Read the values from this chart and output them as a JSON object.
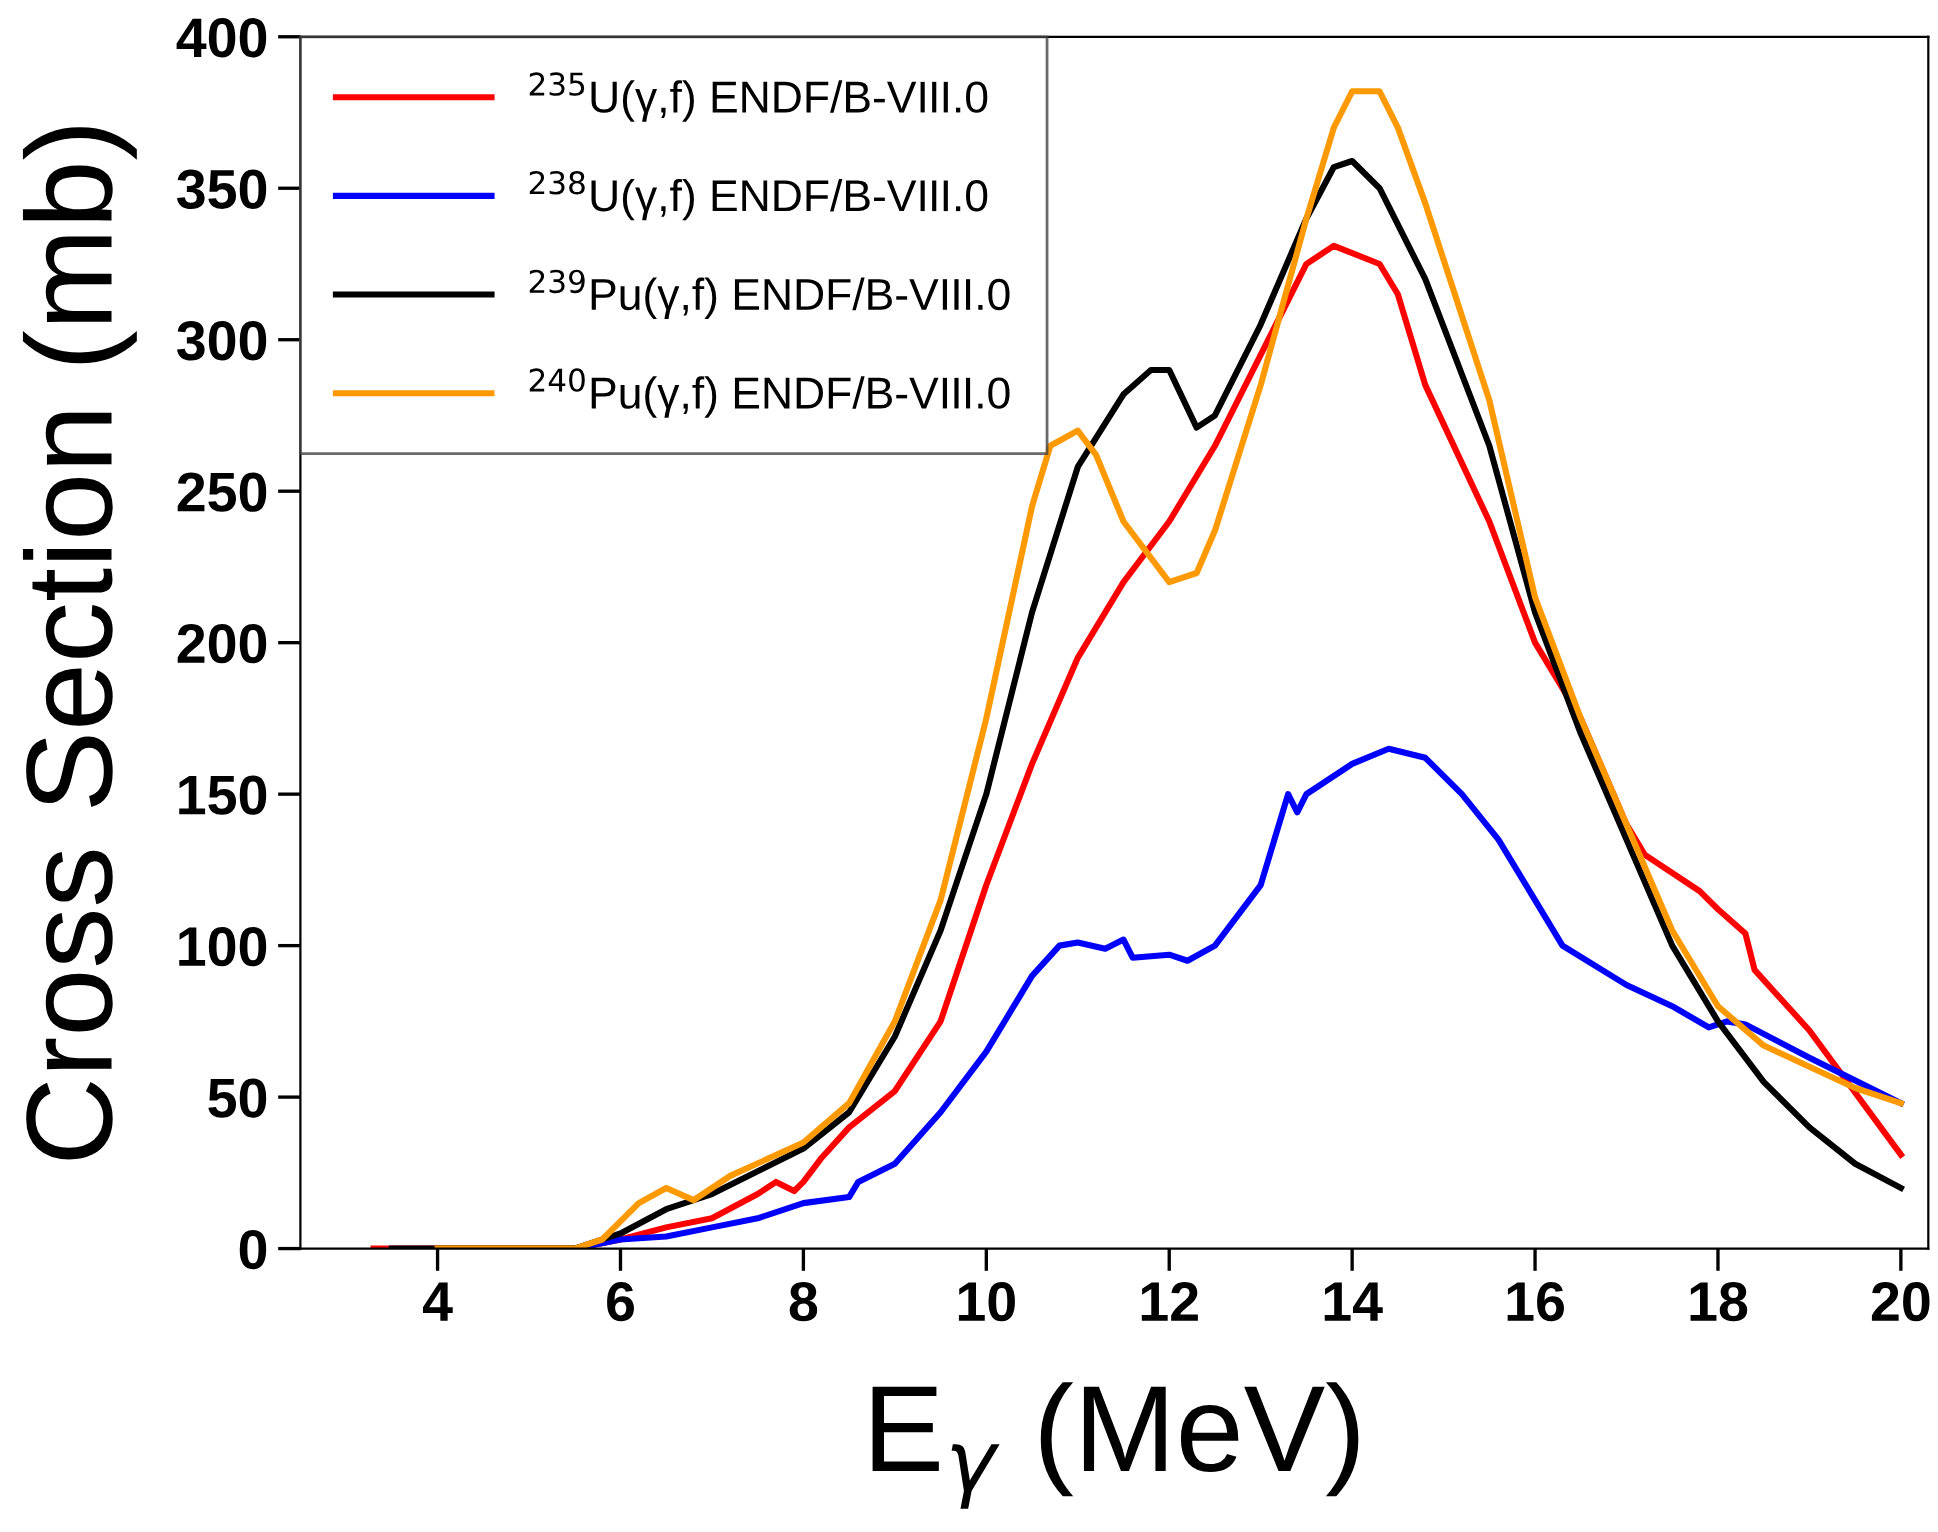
{
  "chart_data": {
    "type": "line",
    "xlabel": "E$_{γ}$ (MeV)",
    "ylabel": "Cross Section (mb)",
    "xlim": [
      2.5,
      20.3
    ],
    "ylim": [
      0,
      400
    ],
    "xticks": [
      4,
      6,
      8,
      10,
      12,
      14,
      16,
      18,
      20
    ],
    "yticks": [
      0,
      50,
      100,
      150,
      200,
      250,
      300,
      350,
      400
    ],
    "grid": false,
    "legend": "top left",
    "marker": "none",
    "line_style": "solid",
    "series": [
      {
        "name": "$^{235}$U(γ,f) ENDF/B-VIII.0",
        "color": "#ff0000",
        "x": [
          3.3,
          5.5,
          6,
          6.5,
          7,
          7.5,
          7.7,
          7.9,
          8,
          8.2,
          8.5,
          9,
          9.5,
          10,
          10.5,
          11,
          11.5,
          12,
          12.5,
          13,
          13.5,
          13.8,
          14.3,
          14.5,
          14.8,
          15.5,
          16,
          16.5,
          17,
          17.2,
          17.8,
          18,
          18.3,
          18.4,
          19,
          20
        ],
        "values": [
          0,
          0,
          3,
          7,
          10,
          18,
          22,
          19,
          22,
          30,
          40,
          52,
          75,
          120,
          160,
          195,
          220,
          240,
          265,
          295,
          325,
          331,
          325,
          315,
          285,
          240,
          200,
          175,
          140,
          130,
          118,
          112,
          104,
          92,
          72,
          31
        ]
      },
      {
        "name": "$^{238}$U(γ,f) ENDF/B-VIII.0",
        "color": "#0000ff",
        "x": [
          5.5,
          6,
          6.5,
          7,
          7.5,
          8,
          8.5,
          8.6,
          9,
          9.5,
          10,
          10.5,
          10.8,
          11,
          11.3,
          11.5,
          11.6,
          12,
          12.2,
          12.5,
          13,
          13.3,
          13.4,
          13.5,
          14,
          14.4,
          14.8,
          15.2,
          15.6,
          16,
          16.3,
          17,
          17.5,
          17.9,
          18.1,
          18.3,
          19,
          20
        ],
        "values": [
          0,
          3,
          4,
          7,
          10,
          15,
          17,
          22,
          28,
          45,
          65,
          90,
          100,
          101,
          99,
          102,
          96,
          97,
          95,
          100,
          120,
          150,
          144,
          150,
          160,
          165,
          162,
          150,
          135,
          115,
          100,
          87,
          80,
          73,
          75,
          74,
          63,
          48
        ]
      },
      {
        "name": "$^{239}$Pu(γ,f) ENDF/B-VIII.0",
        "color": "#000000",
        "x": [
          3.5,
          5.5,
          6,
          6.5,
          7,
          8,
          8.5,
          9,
          9.5,
          10,
          10.5,
          11,
          11.5,
          11.8,
          12,
          12.3,
          12.5,
          13,
          13.5,
          13.8,
          14,
          14.3,
          14.8,
          15.5,
          16,
          16.5,
          17,
          17.5,
          18,
          18.5,
          19,
          19.5,
          20
        ],
        "values": [
          0,
          0,
          5,
          13,
          18,
          33,
          45,
          70,
          105,
          150,
          210,
          258,
          282,
          290,
          290,
          271,
          275,
          305,
          340,
          357,
          359,
          350,
          320,
          265,
          210,
          170,
          135,
          100,
          75,
          55,
          40,
          28,
          20
        ]
      },
      {
        "name": "$^{240}$Pu(γ,f) ENDF/B-VIII.0",
        "color": "#ff9900",
        "x": [
          4,
          5.5,
          5.8,
          6.2,
          6.5,
          6.8,
          7.2,
          8,
          8.5,
          9,
          9.5,
          10,
          10.5,
          10.7,
          11,
          11.2,
          11.5,
          12,
          12.3,
          12.5,
          13,
          13.5,
          13.8,
          14,
          14.3,
          14.5,
          14.8,
          15.5,
          16,
          16.5,
          17,
          17.5,
          18,
          18.5,
          19,
          19.5,
          20
        ],
        "values": [
          0,
          0,
          3,
          15,
          20,
          16,
          24,
          35,
          48,
          75,
          115,
          175,
          245,
          265,
          270,
          262,
          240,
          220,
          223,
          237,
          285,
          340,
          370,
          382,
          382,
          370,
          345,
          280,
          215,
          175,
          140,
          105,
          80,
          67,
          60,
          53,
          48
        ]
      }
    ]
  }
}
